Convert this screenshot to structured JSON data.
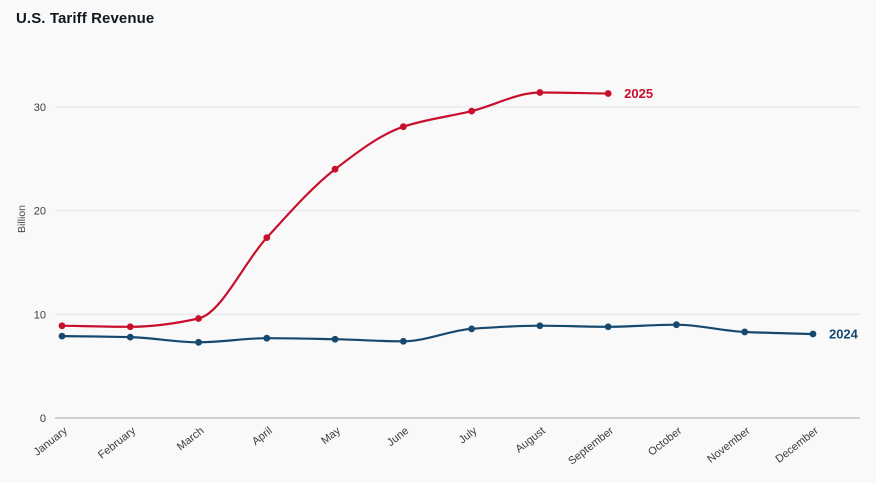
{
  "page": {
    "title": "U.S. Tariff Revenue"
  },
  "chart_data": {
    "type": "line",
    "title": "U.S. Tariff Revenue",
    "xlabel": "",
    "ylabel": "Billion",
    "categories": [
      "January",
      "February",
      "March",
      "April",
      "May",
      "June",
      "July",
      "August",
      "September",
      "October",
      "November",
      "December"
    ],
    "yticks": [
      0,
      10,
      20,
      30
    ],
    "ylim": [
      0,
      34
    ],
    "grid": true,
    "legend_position": "end-of-line",
    "colors": {
      "series_2025": "#c8102e",
      "series_2024": "#17496f",
      "gridline": "#e3e3e3",
      "axis_line": "#a8a8a8",
      "background": "#f9f9f9"
    },
    "series": [
      {
        "name": "2025",
        "color": "#c8102e",
        "smooth": true,
        "values": [
          8.9,
          8.8,
          9.6,
          17.4,
          24.0,
          28.1,
          29.6,
          31.4,
          31.3
        ]
      },
      {
        "name": "2024",
        "color": "#17496f",
        "smooth": true,
        "values": [
          7.9,
          7.8,
          7.3,
          7.7,
          7.6,
          7.4,
          8.6,
          8.9,
          8.8,
          9.0,
          8.3,
          8.1
        ]
      }
    ]
  }
}
